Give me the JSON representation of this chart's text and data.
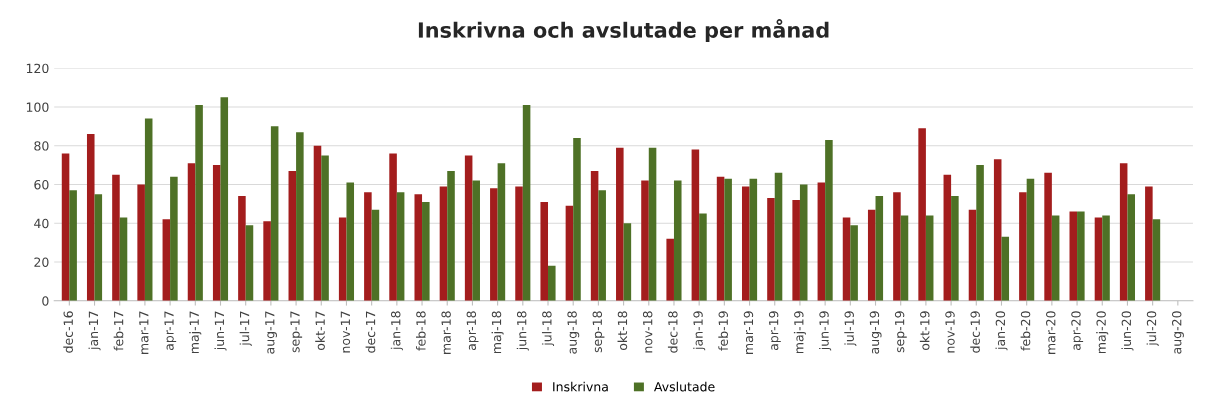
{
  "chart_data": {
    "type": "bar",
    "title": "Inskrivna och avslutade per månad",
    "categories": [
      "dec-16",
      "jan-17",
      "feb-17",
      "mar-17",
      "apr-17",
      "maj-17",
      "jun-17",
      "jul-17",
      "aug-17",
      "sep-17",
      "okt-17",
      "nov-17",
      "dec-17",
      "jan-18",
      "feb-18",
      "mar-18",
      "apr-18",
      "maj-18",
      "jun-18",
      "jul-18",
      "aug-18",
      "sep-18",
      "okt-18",
      "nov-18",
      "dec-18",
      "jan-19",
      "feb-19",
      "mar-19",
      "apr-19",
      "maj-19",
      "jun-19",
      "jul-19",
      "aug-19",
      "sep-19",
      "okt-19",
      "nov-19",
      "dec-19",
      "jan-20",
      "feb-20",
      "mar-20",
      "apr-20",
      "maj-20",
      "jun-20",
      "jul-20",
      "aug-20"
    ],
    "series": [
      {
        "name": "Inskrivna",
        "color": "#a31d1d",
        "values": [
          76,
          86,
          65,
          60,
          42,
          71,
          70,
          54,
          41,
          67,
          80,
          43,
          56,
          76,
          55,
          59,
          75,
          58,
          59,
          51,
          49,
          67,
          79,
          62,
          32,
          78,
          64,
          59,
          53,
          52,
          61,
          43,
          47,
          56,
          89,
          65,
          47,
          73,
          56,
          66,
          46,
          43,
          71,
          59,
          null
        ]
      },
      {
        "name": "Avslutade",
        "color": "#4e7126",
        "values": [
          57,
          55,
          43,
          94,
          64,
          101,
          105,
          39,
          90,
          87,
          75,
          61,
          47,
          56,
          51,
          67,
          62,
          71,
          101,
          18,
          84,
          57,
          40,
          79,
          62,
          45,
          63,
          63,
          66,
          60,
          83,
          39,
          54,
          44,
          44,
          54,
          70,
          33,
          63,
          44,
          46,
          44,
          55,
          42,
          null
        ]
      }
    ],
    "ylim": [
      0,
      120
    ],
    "yticks": [
      0,
      20,
      40,
      60,
      80,
      100,
      120
    ],
    "grid": "y",
    "legend": "bottom"
  }
}
